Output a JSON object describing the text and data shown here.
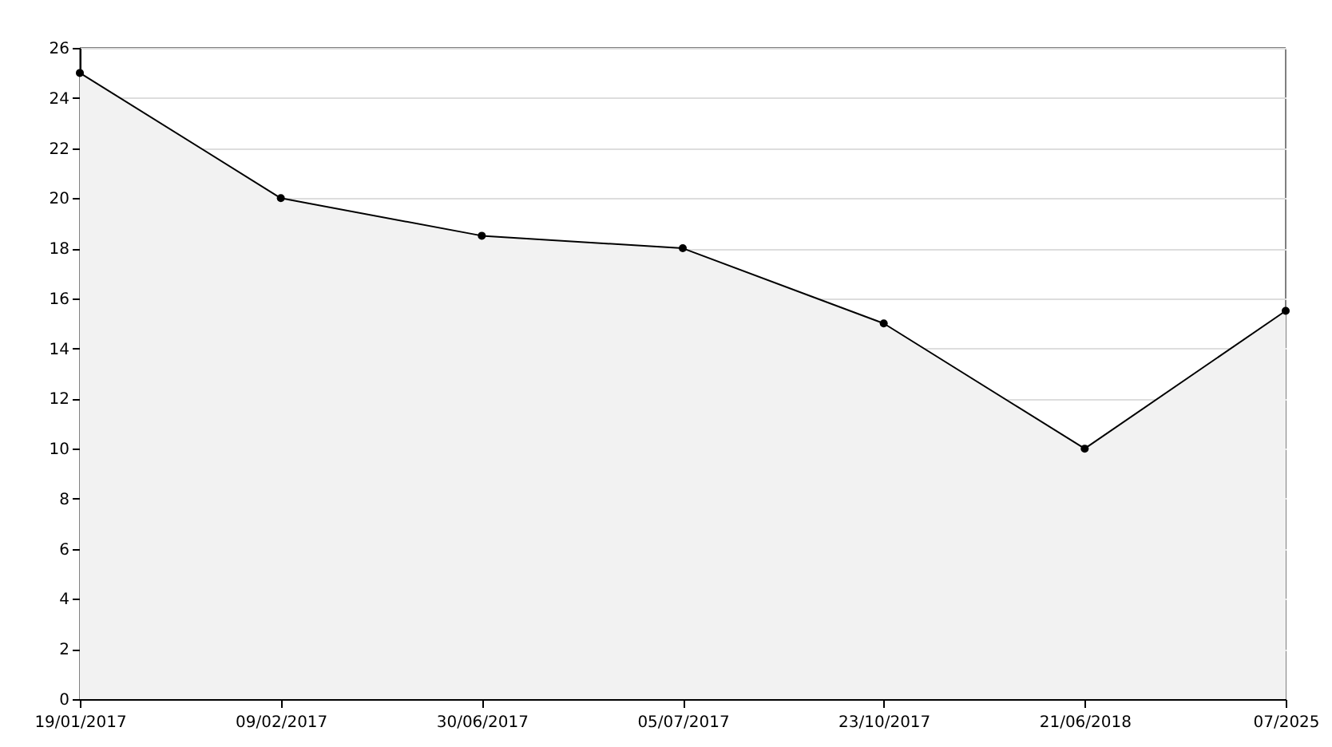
{
  "chart_data": {
    "type": "area",
    "categories": [
      "19/01/2017",
      "09/02/2017",
      "30/06/2017",
      "05/07/2017",
      "23/10/2017",
      "21/06/2018",
      "07/2025"
    ],
    "series": [
      {
        "color": "#000000",
        "values": [
          25,
          20,
          18.5,
          18,
          15,
          10,
          15.5
        ]
      }
    ],
    "ylim": [
      0,
      26
    ],
    "yticks": [
      0,
      2,
      4,
      6,
      8,
      10,
      12,
      14,
      16,
      18,
      20,
      22,
      24,
      26
    ],
    "grid": "y",
    "marker": "circle",
    "line_style": "solid"
  }
}
